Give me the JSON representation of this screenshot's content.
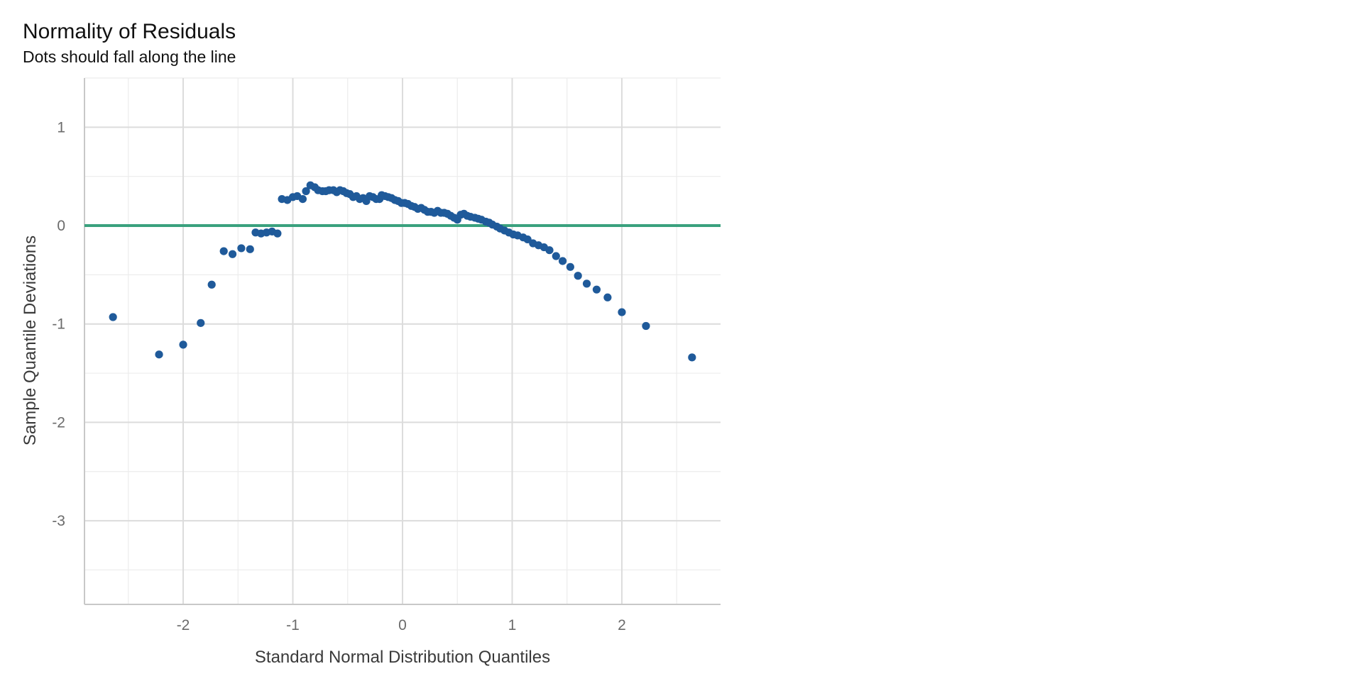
{
  "chart_data": {
    "type": "scatter",
    "title": "Normality of Residuals",
    "subtitle": "Dots should fall along the line",
    "xlabel": "Standard Normal Distribution Quantiles",
    "ylabel": "Sample Quantile Deviations",
    "xlim": [
      -2.9,
      2.9
    ],
    "ylim": [
      -3.85,
      1.5
    ],
    "x_ticks": [
      {
        "value": -2,
        "label": "-2"
      },
      {
        "value": -1,
        "label": "-1"
      },
      {
        "value": 0,
        "label": "0"
      },
      {
        "value": 1,
        "label": "1"
      },
      {
        "value": 2,
        "label": "2"
      }
    ],
    "y_ticks": [
      {
        "value": 1,
        "label": "1"
      },
      {
        "value": 0,
        "label": "0"
      },
      {
        "value": -1,
        "label": "-1"
      },
      {
        "value": -2,
        "label": "-2"
      },
      {
        "value": -3,
        "label": "-3"
      }
    ],
    "grid": true,
    "reference_line": {
      "y": 0,
      "color": "#3aa17e"
    },
    "point_color": "#1f5a9a",
    "points": [
      [
        -2.64,
        -0.93
      ],
      [
        -2.22,
        -1.31
      ],
      [
        -2.0,
        -1.21
      ],
      [
        -1.84,
        -0.99
      ],
      [
        -1.74,
        -0.6
      ],
      [
        -1.63,
        -0.26
      ],
      [
        -1.55,
        -0.29
      ],
      [
        -1.47,
        -0.23
      ],
      [
        -1.39,
        -0.24
      ],
      [
        -1.34,
        -0.07
      ],
      [
        -1.29,
        -0.08
      ],
      [
        -1.24,
        -0.07
      ],
      [
        -1.19,
        -0.06
      ],
      [
        -1.14,
        -0.08
      ],
      [
        -1.1,
        0.27
      ],
      [
        -1.05,
        0.26
      ],
      [
        -1.0,
        0.29
      ],
      [
        -0.96,
        0.3
      ],
      [
        -0.91,
        0.27
      ],
      [
        -0.88,
        0.35
      ],
      [
        -0.84,
        0.41
      ],
      [
        -0.8,
        0.39
      ],
      [
        -0.77,
        0.36
      ],
      [
        -0.73,
        0.35
      ],
      [
        -0.7,
        0.35
      ],
      [
        -0.67,
        0.36
      ],
      [
        -0.63,
        0.36
      ],
      [
        -0.6,
        0.34
      ],
      [
        -0.57,
        0.36
      ],
      [
        -0.54,
        0.35
      ],
      [
        -0.51,
        0.33
      ],
      [
        -0.48,
        0.32
      ],
      [
        -0.45,
        0.29
      ],
      [
        -0.42,
        0.3
      ],
      [
        -0.39,
        0.27
      ],
      [
        -0.36,
        0.28
      ],
      [
        -0.33,
        0.25
      ],
      [
        -0.3,
        0.3
      ],
      [
        -0.27,
        0.29
      ],
      [
        -0.24,
        0.27
      ],
      [
        -0.21,
        0.27
      ],
      [
        -0.19,
        0.31
      ],
      [
        -0.16,
        0.3
      ],
      [
        -0.13,
        0.29
      ],
      [
        -0.1,
        0.28
      ],
      [
        -0.07,
        0.26
      ],
      [
        -0.04,
        0.25
      ],
      [
        -0.01,
        0.23
      ],
      [
        0.02,
        0.23
      ],
      [
        0.05,
        0.22
      ],
      [
        0.08,
        0.2
      ],
      [
        0.11,
        0.19
      ],
      [
        0.14,
        0.17
      ],
      [
        0.17,
        0.18
      ],
      [
        0.2,
        0.16
      ],
      [
        0.23,
        0.14
      ],
      [
        0.26,
        0.14
      ],
      [
        0.29,
        0.13
      ],
      [
        0.32,
        0.15
      ],
      [
        0.35,
        0.13
      ],
      [
        0.38,
        0.13
      ],
      [
        0.41,
        0.12
      ],
      [
        0.44,
        0.1
      ],
      [
        0.47,
        0.08
      ],
      [
        0.5,
        0.06
      ],
      [
        0.53,
        0.11
      ],
      [
        0.56,
        0.12
      ],
      [
        0.59,
        0.1
      ],
      [
        0.62,
        0.09
      ],
      [
        0.66,
        0.08
      ],
      [
        0.69,
        0.07
      ],
      [
        0.72,
        0.06
      ],
      [
        0.76,
        0.04
      ],
      [
        0.79,
        0.03
      ],
      [
        0.82,
        0.01
      ],
      [
        0.86,
        -0.01
      ],
      [
        0.89,
        -0.03
      ],
      [
        0.93,
        -0.05
      ],
      [
        0.97,
        -0.07
      ],
      [
        1.01,
        -0.09
      ],
      [
        1.05,
        -0.1
      ],
      [
        1.1,
        -0.12
      ],
      [
        1.14,
        -0.14
      ],
      [
        1.19,
        -0.18
      ],
      [
        1.24,
        -0.2
      ],
      [
        1.29,
        -0.22
      ],
      [
        1.34,
        -0.25
      ],
      [
        1.4,
        -0.31
      ],
      [
        1.46,
        -0.36
      ],
      [
        1.53,
        -0.42
      ],
      [
        1.6,
        -0.51
      ],
      [
        1.68,
        -0.59
      ],
      [
        1.77,
        -0.65
      ],
      [
        1.87,
        -0.73
      ],
      [
        2.0,
        -0.88
      ],
      [
        2.22,
        -1.02
      ],
      [
        2.64,
        -1.34
      ]
    ]
  }
}
